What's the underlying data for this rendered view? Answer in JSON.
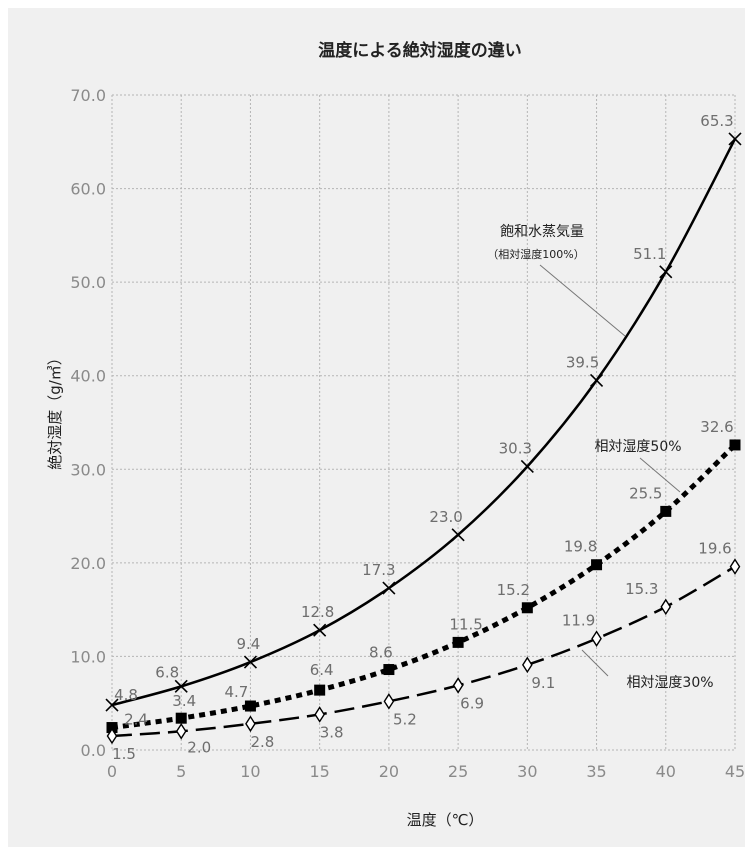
{
  "chart_data": {
    "type": "line",
    "title": "温度による絶対湿度の違い",
    "xlabel": "温度（℃）",
    "ylabel": "絶対湿度（g/㎥）",
    "xlim": [
      0,
      45
    ],
    "ylim": [
      0,
      70
    ],
    "x": [
      0,
      5,
      10,
      15,
      20,
      25,
      30,
      35,
      40,
      45
    ],
    "x_tick_labels": [
      "0",
      "5",
      "10",
      "15",
      "20",
      "25",
      "30",
      "35",
      "40",
      "45"
    ],
    "y_tick_labels": [
      "0.0",
      "10.0",
      "20.0",
      "30.0",
      "40.0",
      "50.0",
      "60.0",
      "70.0"
    ],
    "grid": true,
    "background": "#f0f0f0",
    "series": [
      {
        "name": "飽和水蒸気量",
        "note": "（相対湿度100%）",
        "values": [
          4.8,
          6.8,
          9.4,
          12.8,
          17.3,
          23.0,
          30.3,
          39.5,
          51.1,
          65.3
        ],
        "labels": [
          "4.8",
          "6.8",
          "9.4",
          "12.8",
          "17.3",
          "23.0",
          "30.3",
          "39.5",
          "51.1",
          "65.3"
        ],
        "marker": "x",
        "line": "solid",
        "color": "#000000"
      },
      {
        "name": "相対湿度50%",
        "values": [
          2.4,
          3.4,
          4.7,
          6.4,
          8.6,
          11.5,
          15.2,
          19.8,
          25.5,
          32.6
        ],
        "labels": [
          "2.4",
          "3.4",
          "4.7",
          "6.4",
          "8.6",
          "11.5",
          "15.2",
          "19.8",
          "25.5",
          "32.6"
        ],
        "marker": "square",
        "line": "dotted",
        "color": "#000000"
      },
      {
        "name": "相対湿度30%",
        "values": [
          1.5,
          2.0,
          2.8,
          3.8,
          5.2,
          6.9,
          9.1,
          11.9,
          15.3,
          19.6
        ],
        "labels": [
          "1.5",
          "2.0",
          "2.8",
          "3.8",
          "5.2",
          "6.9",
          "9.1",
          "11.9",
          "15.3",
          "19.6"
        ],
        "marker": "diamond",
        "line": "dashed",
        "color": "#000000"
      }
    ]
  }
}
